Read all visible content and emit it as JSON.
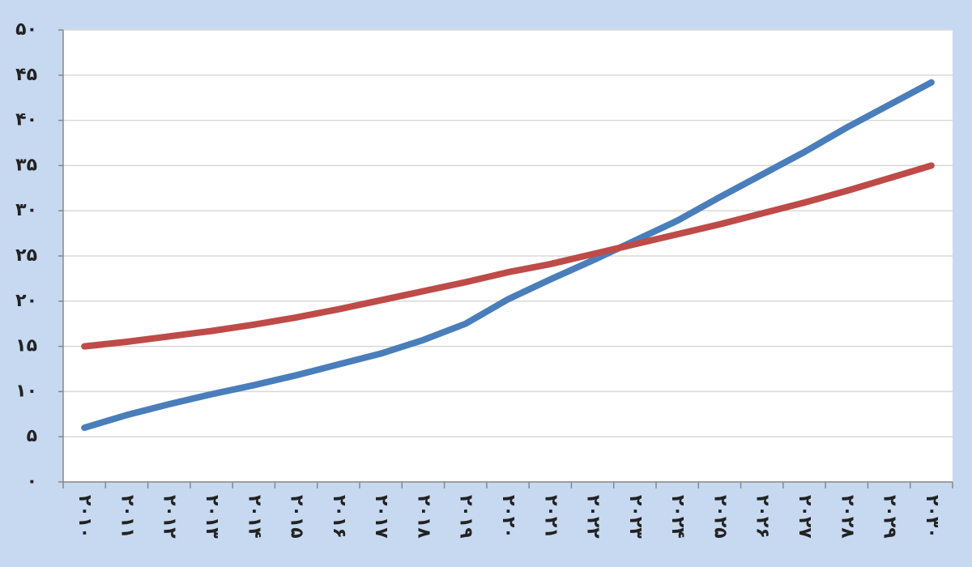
{
  "chart_data": {
    "type": "line",
    "categories": [
      "۲۰۱۰",
      "۲۰۱۱",
      "۲۰۱۲",
      "۲۰۱۳",
      "۲۰۱۴",
      "۲۰۱۵",
      "۲۰۱۶",
      "۲۰۱۷",
      "۲۰۱۸",
      "۲۰۱۹",
      "۲۰۲۰",
      "۲۰۲۱",
      "۲۰۲۲",
      "۲۰۲۳",
      "۲۰۲۴",
      "۲۰۲۵",
      "۲۰۲۶",
      "۲۰۲۷",
      "۲۰۲۸",
      "۲۰۲۹",
      "۲۰۳۰"
    ],
    "series": [
      {
        "color": "#4a7ebb",
        "values": [
          6.0,
          7.4,
          8.6,
          9.7,
          10.7,
          11.8,
          13.0,
          14.2,
          15.7,
          17.5,
          20.2,
          22.4,
          24.5,
          26.7,
          28.9,
          31.5,
          34.0,
          36.5,
          39.2,
          41.7,
          44.2
        ]
      },
      {
        "color": "#be4b48",
        "values": [
          15.0,
          15.5,
          16.1,
          16.7,
          17.4,
          18.2,
          19.1,
          20.1,
          21.1,
          22.1,
          23.2,
          24.1,
          25.2,
          26.3,
          27.4,
          28.5,
          29.7,
          30.9,
          32.2,
          33.6,
          35.0
        ]
      }
    ],
    "ylim": [
      0,
      50
    ],
    "yticks": [
      {
        "value": 0,
        "label": "۰"
      },
      {
        "value": 5,
        "label": "۵"
      },
      {
        "value": 10,
        "label": "۱۰"
      },
      {
        "value": 15,
        "label": "۱۵"
      },
      {
        "value": 20,
        "label": "۲۰"
      },
      {
        "value": 25,
        "label": "۲۵"
      },
      {
        "value": 30,
        "label": "۳۰"
      },
      {
        "value": 35,
        "label": "۳۵"
      },
      {
        "value": 40,
        "label": "۴۰"
      },
      {
        "value": 45,
        "label": "۴۵"
      },
      {
        "value": 50,
        "label": "۵۰"
      }
    ],
    "grid": true
  }
}
